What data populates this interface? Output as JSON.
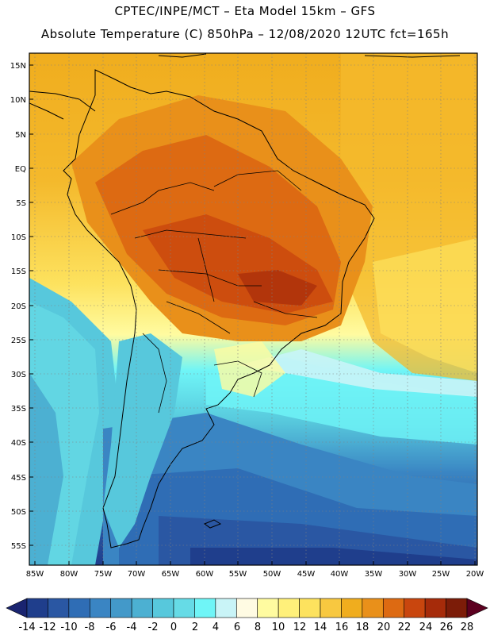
{
  "header": {
    "line1": "CPTEC/INPE/MCT –  Eta Model 15km – GFS",
    "line2": "Absolute Temperature (C) 850hPa – 12/08/2020 12UTC fct=165h"
  },
  "map": {
    "lat_labels": [
      "15N",
      "10N",
      "5N",
      "EQ",
      "5S",
      "10S",
      "15S",
      "20S",
      "25S",
      "30S",
      "35S",
      "40S",
      "45S",
      "50S",
      "55S"
    ],
    "lon_labels": [
      "85W",
      "80W",
      "75W",
      "70W",
      "65W",
      "60W",
      "55W",
      "50W",
      "45W",
      "40W",
      "35W",
      "30W",
      "25W",
      "20W"
    ]
  },
  "colorbar": {
    "labels": [
      "-14",
      "-12",
      "-10",
      "-8",
      "-6",
      "-4",
      "-2",
      "0",
      "2",
      "4",
      "6",
      "8",
      "10",
      "12",
      "14",
      "16",
      "18",
      "20",
      "22",
      "24",
      "26",
      "28"
    ],
    "colors": [
      "#1f3e8c",
      "#2a57a3",
      "#2f6db5",
      "#3a85c3",
      "#4399c9",
      "#4cb0d2",
      "#57c8dc",
      "#66dbe6",
      "#6ff5f7",
      "#c9f4f7",
      "#fffbe3",
      "#fffba0",
      "#fff07a",
      "#fde25e",
      "#f8c840",
      "#f0ad1e",
      "#e9901a",
      "#dd6a12",
      "#c9460e",
      "#a62b0a",
      "#7c1c08"
    ],
    "low_arrow_color": "#1a2470",
    "high_arrow_color": "#5c0020"
  }
}
